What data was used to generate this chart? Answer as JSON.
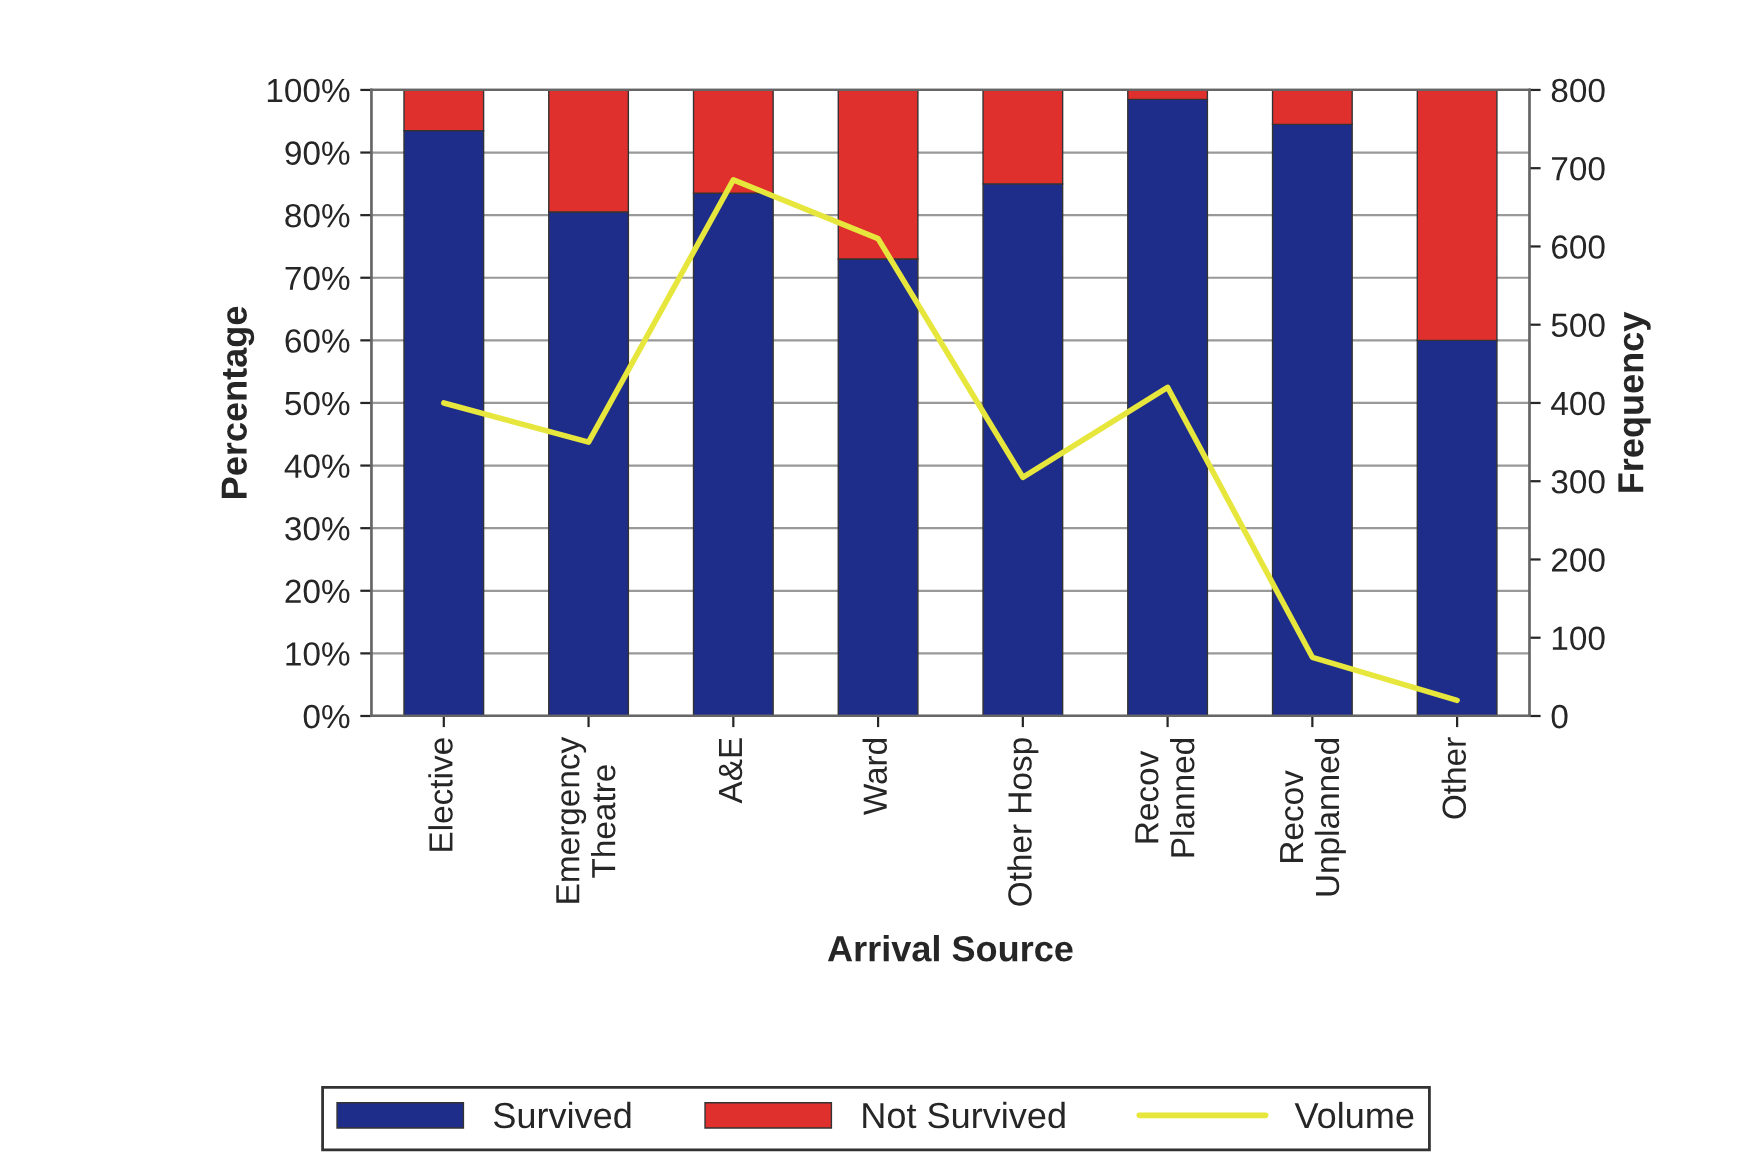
{
  "chart_data": {
    "type": "bar",
    "stacked": true,
    "xlabel": "Arrival Source",
    "ylabel": "Percentage",
    "y2label": "Frequency",
    "categories": [
      "Elective",
      "Emergency\nTheatre",
      "A&E",
      "Ward",
      "Other Hosp",
      "Recov\nPlanned",
      "Recov\nUnplanned",
      "Other"
    ],
    "series": [
      {
        "name": "Survived",
        "color": "#1f2d8a",
        "values": [
          93.5,
          80.5,
          83.5,
          73,
          85,
          98.5,
          94.5,
          60
        ]
      },
      {
        "name": "Not Survived",
        "color": "#e0302e",
        "values": [
          6.5,
          19.5,
          16.5,
          27,
          15,
          1.5,
          5.5,
          40
        ]
      },
      {
        "name": "Volume",
        "type": "line",
        "axis": "y2",
        "color": "#e6e63c",
        "values": [
          400,
          350,
          685,
          610,
          305,
          420,
          75,
          20
        ]
      }
    ],
    "ylim": [
      0,
      100
    ],
    "yticks": [
      {
        "value": 0,
        "label": "0%"
      },
      {
        "value": 10,
        "label": "10%"
      },
      {
        "value": 20,
        "label": "20%"
      },
      {
        "value": 30,
        "label": "30%"
      },
      {
        "value": 40,
        "label": "40%"
      },
      {
        "value": 50,
        "label": "50%"
      },
      {
        "value": 60,
        "label": "60%"
      },
      {
        "value": 70,
        "label": "70%"
      },
      {
        "value": 80,
        "label": "80%"
      },
      {
        "value": 90,
        "label": "90%"
      },
      {
        "value": 100,
        "label": "100%"
      }
    ],
    "y2lim": [
      0,
      800
    ],
    "y2ticks": [
      0,
      100,
      200,
      300,
      400,
      500,
      600,
      700,
      800
    ],
    "grid": "y",
    "legend": "bottom",
    "marker": "none",
    "line_style": "solid"
  }
}
